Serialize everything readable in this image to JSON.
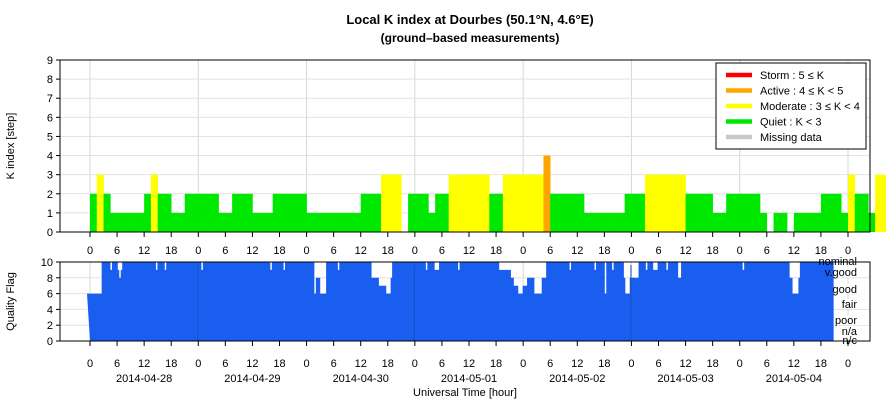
{
  "chart_data": [
    {
      "type": "bar",
      "title": "Local K index at Dourbes (50.1°N, 4.6°E)",
      "subtitle": "(ground–based measurements)",
      "ylabel": "K index [step]",
      "ylim": [
        0,
        9
      ],
      "yticks": [
        "0",
        "1",
        "2",
        "3",
        "4",
        "5",
        "6",
        "7",
        "8",
        "9"
      ],
      "xticks": [
        "0",
        "6",
        "12",
        "18",
        "0",
        "6",
        "12",
        "18",
        "0",
        "6",
        "12",
        "18",
        "0",
        "6",
        "12",
        "18",
        "0",
        "6",
        "12",
        "18",
        "0",
        "6",
        "12",
        "18",
        "0",
        "6",
        "12",
        "18",
        "0"
      ],
      "grid": true,
      "legend_position": "top-right",
      "legend": [
        {
          "label": "Storm : 5 ≤ K",
          "color": "#ff0000"
        },
        {
          "label": "Active : 4 ≤ K < 5",
          "color": "#ffa500"
        },
        {
          "label": "Moderate : 3 ≤ K < 4",
          "color": "#ffff00"
        },
        {
          "label": "Quiet : K < 3",
          "color": "#00e800"
        },
        {
          "label": "Missing data",
          "color": "#c8c8c8"
        }
      ],
      "bar_width_hours": 1.5,
      "series": [
        {
          "values": [
            2,
            3,
            2,
            1,
            1,
            1,
            1,
            1,
            2,
            3,
            2,
            2,
            1,
            1,
            2,
            2,
            2,
            2,
            2,
            1,
            1,
            2,
            2,
            2,
            1,
            1,
            1,
            2,
            2,
            2,
            2,
            2,
            1,
            1,
            1,
            1,
            1,
            1,
            1,
            1,
            2,
            2,
            2,
            3,
            3,
            3,
            0,
            2,
            2,
            2,
            1,
            2,
            2,
            3,
            3,
            3,
            3,
            3,
            3,
            2,
            2,
            3,
            3,
            3,
            3,
            3,
            3,
            4,
            2,
            2,
            2,
            2,
            2,
            1,
            1,
            1,
            1,
            1,
            1,
            2,
            2,
            2,
            3,
            3,
            3,
            3,
            3,
            3,
            2,
            2,
            2,
            2,
            1,
            1,
            2,
            2,
            2,
            2,
            2,
            1,
            0,
            1,
            1,
            0,
            1,
            1,
            1,
            1,
            2,
            2,
            2,
            1,
            3,
            2,
            2,
            1,
            3,
            3,
            2,
            2,
            1,
            1,
            1,
            2,
            0,
            1,
            0,
            0,
            0,
            0,
            0,
            0,
            0,
            0,
            0,
            0,
            0,
            0,
            0,
            0,
            2,
            2,
            2,
            1,
            3,
            2,
            3,
            2,
            2,
            0,
            1,
            1,
            1,
            3,
            3,
            3,
            3,
            3,
            3,
            2,
            2,
            3,
            3,
            3,
            3,
            1,
            2,
            4,
            3,
            1,
            3,
            3,
            3,
            2,
            2,
            2
          ]
        }
      ]
    },
    {
      "type": "area",
      "ylabel": "Quality Flag",
      "ylim": [
        0,
        10
      ],
      "yticks": [
        "0",
        "2",
        "4",
        "6",
        "8",
        "10"
      ],
      "xticks": [
        "0",
        "6",
        "12",
        "18",
        "0",
        "6",
        "12",
        "18",
        "0",
        "6",
        "12",
        "18",
        "0",
        "6",
        "12",
        "18",
        "0",
        "6",
        "12",
        "18",
        "0",
        "6",
        "12",
        "18",
        "0",
        "6",
        "12",
        "18",
        "0"
      ],
      "xlabel": "Universal Time [hour]",
      "date_labels": [
        "2014-04-28",
        "2014-04-29",
        "2014-04-30",
        "2014-05-01",
        "2014-05-02",
        "2014-05-03",
        "2014-05-04"
      ],
      "flag_labels": [
        "nominal",
        "v.good",
        "good",
        "fair",
        "poor",
        "n/a",
        "n/c"
      ],
      "color": "#1a5ef0",
      "grid": true,
      "values": [
        6,
        6,
        6,
        6,
        6,
        6,
        6,
        6,
        6,
        6,
        10,
        10,
        10,
        10,
        10,
        10,
        9,
        10,
        10,
        10,
        10,
        9,
        8,
        9,
        10,
        10,
        10,
        10,
        10,
        10,
        10,
        10,
        10,
        10,
        10,
        10,
        10,
        10,
        10,
        10,
        10,
        10,
        10,
        10,
        10,
        10,
        10,
        9,
        10,
        10,
        10,
        10,
        10,
        9,
        10,
        10,
        10,
        10,
        10,
        10,
        10,
        10,
        10,
        10,
        10,
        10,
        10,
        10,
        10,
        10,
        10,
        10,
        10,
        10,
        10,
        10,
        10,
        10,
        9,
        10,
        10,
        10,
        10,
        10,
        10,
        10,
        10,
        10,
        10,
        10,
        10,
        10,
        10,
        10,
        10,
        10,
        10,
        10,
        10,
        10,
        10,
        10,
        10,
        10,
        10,
        10,
        10,
        10,
        10,
        10,
        10,
        10,
        10,
        10,
        10,
        10,
        10,
        10,
        10,
        10,
        10,
        10,
        10,
        10,
        10,
        9,
        10,
        10,
        10,
        10,
        10,
        10,
        10,
        10,
        9,
        10,
        10,
        10,
        10,
        10,
        10,
        10,
        10,
        10,
        10,
        10,
        10,
        10,
        10,
        10,
        10,
        10,
        10,
        10,
        10,
        6,
        8,
        8,
        8,
        6,
        6,
        6,
        6,
        10,
        10,
        10,
        10,
        10,
        10,
        10,
        10,
        9,
        10,
        10,
        10,
        10,
        10,
        10,
        10,
        10,
        10,
        10,
        10,
        10,
        10,
        10,
        10,
        10,
        10,
        10,
        10,
        10,
        10,
        10,
        8,
        8,
        8,
        8,
        8,
        7,
        7,
        7,
        7,
        7,
        6,
        6,
        6,
        8,
        10,
        10,
        10,
        10,
        10,
        10,
        10,
        10,
        10,
        10,
        10,
        10,
        10,
        10,
        10,
        10,
        10,
        10,
        10,
        10,
        10,
        10,
        10,
        9,
        10,
        10,
        10,
        10,
        10,
        9,
        9,
        9,
        10,
        10,
        10,
        10,
        10,
        10,
        10,
        10,
        10,
        10,
        10,
        10,
        10,
        9,
        10,
        10,
        10,
        10,
        10,
        10,
        10,
        10,
        10,
        10,
        10,
        10,
        10,
        10,
        10,
        10,
        10,
        10,
        10,
        10,
        10,
        10,
        10,
        10,
        10,
        10,
        10,
        9,
        9,
        9,
        9,
        9,
        9,
        9,
        9,
        8,
        8,
        7,
        7,
        7,
        6,
        6,
        6,
        7,
        7,
        7,
        8,
        8,
        8,
        8,
        8,
        6,
        6,
        6,
        6,
        6,
        8,
        8,
        8,
        10,
        10,
        10,
        10,
        10,
        10,
        10,
        10,
        10,
        10,
        10,
        10,
        10,
        10,
        10,
        10,
        9,
        10,
        10,
        10,
        10,
        10,
        10,
        10,
        10,
        10,
        10,
        10,
        10,
        10,
        10,
        10,
        10,
        9,
        10,
        10,
        10,
        10,
        10,
        10,
        6,
        10,
        10,
        10,
        10,
        9,
        10,
        10,
        10,
        10,
        10,
        10,
        10,
        8,
        6,
        6,
        6,
        8,
        8,
        8,
        8,
        8,
        8,
        10,
        10,
        10,
        10,
        10,
        9,
        10,
        10,
        10,
        10,
        9,
        9,
        9,
        10,
        10,
        10,
        10,
        10,
        10,
        9,
        10,
        10,
        10,
        10,
        10,
        10,
        10,
        8,
        8,
        10,
        10,
        10,
        10,
        10,
        10,
        10,
        10,
        10,
        10,
        10,
        10,
        10,
        10,
        10,
        10,
        10,
        10,
        10,
        10,
        10,
        10,
        10,
        10,
        10,
        10,
        10,
        10,
        10,
        10,
        10,
        10,
        10,
        10,
        10,
        10,
        10,
        10,
        10,
        10,
        10,
        10,
        9,
        10,
        10,
        10,
        10,
        10,
        10,
        10,
        10,
        10,
        10,
        10,
        10,
        10,
        10,
        10,
        10,
        10,
        10,
        10,
        10,
        10,
        10,
        10,
        10,
        10,
        10,
        10,
        10,
        10,
        10,
        10,
        8,
        8,
        6,
        6,
        6,
        6,
        8,
        10,
        10,
        10,
        10,
        10,
        10,
        10,
        10,
        10,
        10,
        10,
        10,
        10,
        10,
        10,
        10,
        10,
        10,
        10,
        10,
        10,
        10,
        10
      ]
    }
  ]
}
